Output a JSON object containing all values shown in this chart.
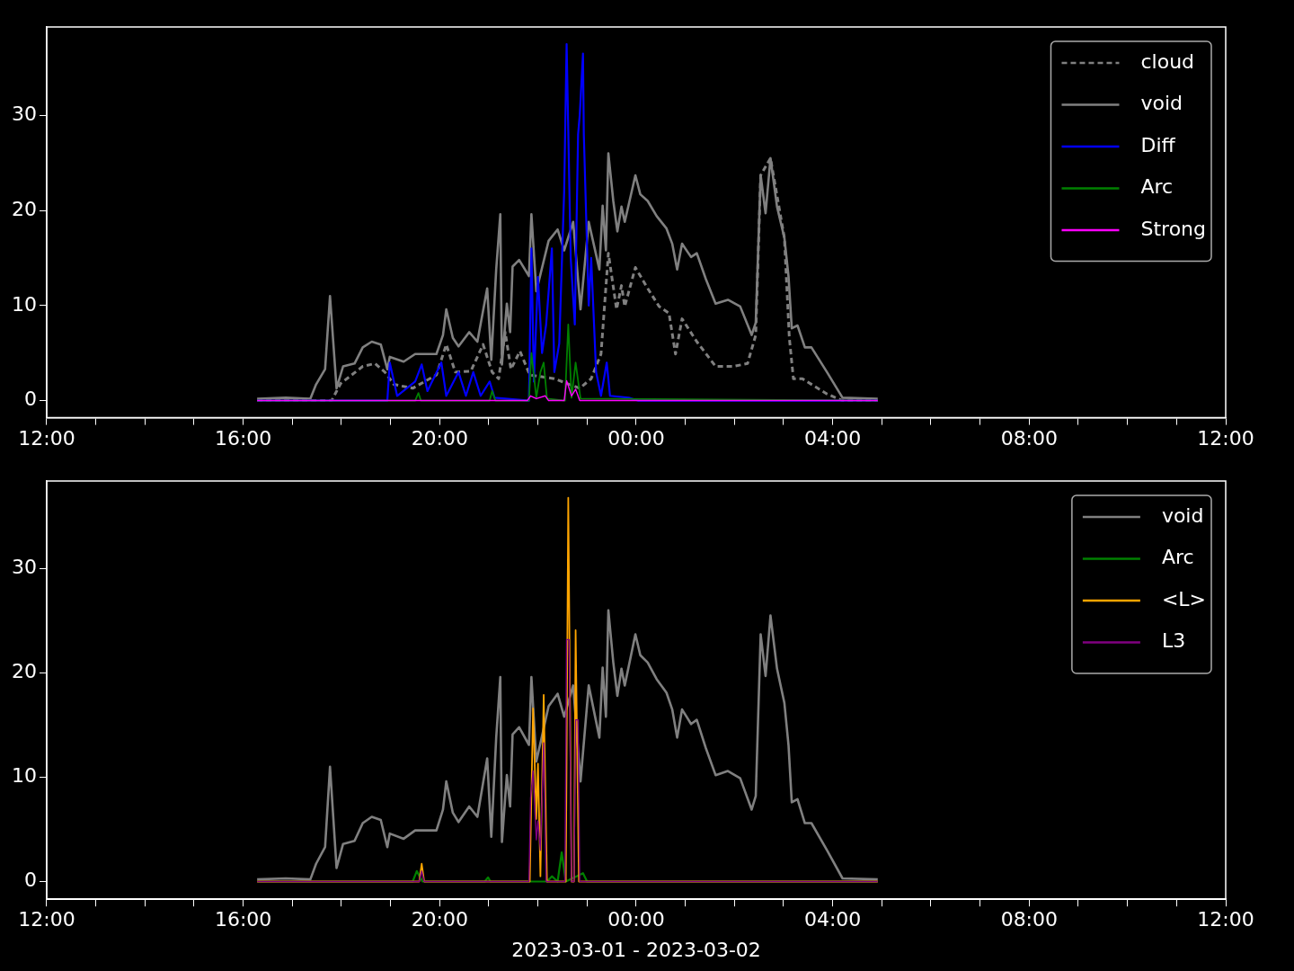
{
  "chart_data": [
    {
      "type": "line",
      "legend": "top right",
      "grid": false,
      "marker": "none",
      "xlim": [
        "2023-03-01T12:00",
        "2023-03-02T12:00"
      ],
      "ylim": [
        -1.8,
        39.3
      ],
      "yticks": [
        0,
        10,
        20,
        30
      ],
      "xticks": [
        {
          "value": "2023-03-01T12:00",
          "label": "12:00"
        },
        {
          "value": "2023-03-01T13:00",
          "label": null
        },
        {
          "value": "2023-03-01T14:00",
          "label": null
        },
        {
          "value": "2023-03-01T15:00",
          "label": null
        },
        {
          "value": "2023-03-01T16:00",
          "label": "16:00"
        },
        {
          "value": "2023-03-01T17:00",
          "label": null
        },
        {
          "value": "2023-03-01T18:00",
          "label": null
        },
        {
          "value": "2023-03-01T19:00",
          "label": null
        },
        {
          "value": "2023-03-01T20:00",
          "label": "20:00"
        },
        {
          "value": "2023-03-01T21:00",
          "label": null
        },
        {
          "value": "2023-03-01T22:00",
          "label": null
        },
        {
          "value": "2023-03-01T23:00",
          "label": null
        },
        {
          "value": "2023-03-02T00:00",
          "label": "00:00"
        },
        {
          "value": "2023-03-02T01:00",
          "label": null
        },
        {
          "value": "2023-03-02T02:00",
          "label": null
        },
        {
          "value": "2023-03-02T03:00",
          "label": null
        },
        {
          "value": "2023-03-02T04:00",
          "label": "04:00"
        },
        {
          "value": "2023-03-02T05:00",
          "label": null
        },
        {
          "value": "2023-03-02T06:00",
          "label": null
        },
        {
          "value": "2023-03-02T07:00",
          "label": null
        },
        {
          "value": "2023-03-02T08:00",
          "label": "08:00"
        },
        {
          "value": "2023-03-02T09:00",
          "label": null
        },
        {
          "value": "2023-03-02T10:00",
          "label": null
        },
        {
          "value": "2023-03-02T11:00",
          "label": null
        },
        {
          "value": "2023-03-02T12:00",
          "label": "12:00"
        }
      ],
      "series": [
        {
          "name": "cloud",
          "color": "#808080",
          "line_style": "dashed",
          "x": [
            "2023-03-01T16:17",
            "2023-03-01T17:48",
            "2023-03-01T17:59",
            "2023-03-01T18:26",
            "2023-03-01T18:41",
            "2023-03-01T18:53",
            "2023-03-01T19:04",
            "2023-03-01T19:27",
            "2023-03-01T19:56",
            "2023-03-01T20:08",
            "2023-03-01T20:19",
            "2023-03-01T20:38",
            "2023-03-01T20:53",
            "2023-03-01T21:04",
            "2023-03-01T21:12",
            "2023-03-01T21:20",
            "2023-03-01T21:27",
            "2023-03-01T21:38",
            "2023-03-01T21:50",
            "2023-03-01T22:20",
            "2023-03-01T22:51",
            "2023-03-01T23:05",
            "2023-03-01T23:17",
            "2023-03-01T23:26",
            "2023-03-01T23:36",
            "2023-03-01T23:42",
            "2023-03-01T23:46",
            "2023-03-01T23:59",
            "2023-03-02T00:14",
            "2023-03-02T00:28",
            "2023-03-02T00:40",
            "2023-03-02T00:48",
            "2023-03-02T00:56",
            "2023-03-02T01:14",
            "2023-03-02T01:37",
            "2023-03-02T01:59",
            "2023-03-02T02:16",
            "2023-03-02T02:26",
            "2023-03-02T02:32",
            "2023-03-02T02:44",
            "2023-03-02T03:01",
            "2023-03-02T03:07",
            "2023-03-02T03:12",
            "2023-03-02T03:23",
            "2023-03-02T03:53",
            "2023-03-02T04:12",
            "2023-03-02T04:55"
          ],
          "values": [
            0,
            0,
            1.8,
            3.6,
            3.9,
            3,
            1.7,
            1.3,
            2.7,
            5.9,
            3,
            3.1,
            5.9,
            3,
            2.3,
            7.2,
            3.3,
            5.2,
            2.7,
            2.3,
            1.3,
            2.3,
            4.9,
            15.5,
            9.6,
            12.1,
            9.9,
            14,
            11.8,
            9.9,
            9.2,
            4.9,
            8.6,
            6.2,
            3.6,
            3.6,
            3.9,
            6.9,
            23.7,
            25.5,
            17.1,
            6.6,
            2.3,
            2.3,
            0.7,
            0,
            0
          ]
        },
        {
          "name": "void",
          "color": "#808080",
          "x": [
            "2023-03-01T16:17",
            "2023-03-01T16:52",
            "2023-03-01T17:22",
            "2023-03-01T17:29",
            "2023-03-01T17:40",
            "2023-03-01T17:46",
            "2023-03-01T17:54",
            "2023-03-01T18:02",
            "2023-03-01T18:16",
            "2023-03-01T18:26",
            "2023-03-01T18:37",
            "2023-03-01T18:48",
            "2023-03-01T18:56",
            "2023-03-01T18:59",
            "2023-03-01T19:16",
            "2023-03-01T19:30",
            "2023-03-01T19:56",
            "2023-03-01T20:04",
            "2023-03-01T20:08",
            "2023-03-01T20:16",
            "2023-03-01T20:23",
            "2023-03-01T20:36",
            "2023-03-01T20:46",
            "2023-03-01T20:58",
            "2023-03-01T21:03",
            "2023-03-01T21:09",
            "2023-03-01T21:14",
            "2023-03-01T21:16",
            "2023-03-01T21:22",
            "2023-03-01T21:26",
            "2023-03-01T21:29",
            "2023-03-01T21:37",
            "2023-03-01T21:49",
            "2023-03-01T21:52",
            "2023-03-01T21:58",
            "2023-03-01T22:13",
            "2023-03-01T22:24",
            "2023-03-01T22:32",
            "2023-03-01T22:43",
            "2023-03-01T22:52",
            "2023-03-01T23:02",
            "2023-03-01T23:15",
            "2023-03-01T23:19",
            "2023-03-01T23:23",
            "2023-03-01T23:26",
            "2023-03-01T23:32",
            "2023-03-01T23:37",
            "2023-03-01T23:42",
            "2023-03-01T23:46",
            "2023-03-01T23:59",
            "2023-03-02T00:05",
            "2023-03-02T00:14",
            "2023-03-02T00:25",
            "2023-03-02T00:37",
            "2023-03-02T00:44",
            "2023-03-02T00:50",
            "2023-03-02T00:56",
            "2023-03-02T01:07",
            "2023-03-02T01:14",
            "2023-03-02T01:25",
            "2023-03-02T01:37",
            "2023-03-02T01:52",
            "2023-03-02T02:07",
            "2023-03-02T02:21",
            "2023-03-02T02:26",
            "2023-03-02T02:32",
            "2023-03-02T02:38",
            "2023-03-02T02:44",
            "2023-03-02T02:52",
            "2023-03-02T03:01",
            "2023-03-02T03:06",
            "2023-03-02T03:10",
            "2023-03-02T03:17",
            "2023-03-02T03:26",
            "2023-03-02T03:34",
            "2023-03-02T03:53",
            "2023-03-02T04:12",
            "2023-03-02T04:55"
          ],
          "values": [
            0.2,
            0.3,
            0.2,
            1.7,
            3.3,
            11,
            1.3,
            3.6,
            3.9,
            5.6,
            6.2,
            5.9,
            3.3,
            4.6,
            4.1,
            4.9,
            4.9,
            6.9,
            9.6,
            6.6,
            5.7,
            7.2,
            6.2,
            11.8,
            4.3,
            13.8,
            19.6,
            3.8,
            10.2,
            7.2,
            14.1,
            14.8,
            13.1,
            19.6,
            11.5,
            16.8,
            18,
            15.8,
            18.8,
            9.6,
            18.8,
            13.8,
            20.5,
            15.8,
            26,
            21,
            17.8,
            20.4,
            18.8,
            23.7,
            21.7,
            21,
            19.4,
            18.1,
            16.5,
            13.8,
            16.5,
            15.1,
            15.5,
            12.8,
            10.2,
            10.6,
            9.9,
            6.9,
            8.2,
            23.7,
            19.7,
            25.5,
            20.4,
            17.1,
            13.1,
            7.6,
            7.9,
            5.6,
            5.6,
            3,
            0.3,
            0.2
          ]
        },
        {
          "name": "Diff",
          "color": "#0000ff",
          "x": [
            "2023-03-01T16:17",
            "2023-03-01T18:56",
            "2023-03-01T18:59",
            "2023-03-01T19:08",
            "2023-03-01T19:30",
            "2023-03-01T19:38",
            "2023-03-01T19:45",
            "2023-03-01T20:02",
            "2023-03-01T20:08",
            "2023-03-01T20:23",
            "2023-03-01T20:32",
            "2023-03-01T20:41",
            "2023-03-01T20:50",
            "2023-03-01T21:01",
            "2023-03-01T21:07",
            "2023-03-01T21:49",
            "2023-03-01T21:52",
            "2023-03-01T21:55",
            "2023-03-01T22:00",
            "2023-03-01T22:05",
            "2023-03-01T22:10",
            "2023-03-01T22:17",
            "2023-03-01T22:20",
            "2023-03-01T22:26",
            "2023-03-01T22:32",
            "2023-03-01T22:35",
            "2023-03-01T22:40",
            "2023-03-01T22:45",
            "2023-03-01T22:49",
            "2023-03-01T22:51",
            "2023-03-01T22:55",
            "2023-03-01T22:56",
            "2023-03-01T23:02",
            "2023-03-01T23:05",
            "2023-03-01T23:11",
            "2023-03-01T23:17",
            "2023-03-01T23:24",
            "2023-03-01T23:28",
            "2023-03-01T23:51",
            "2023-03-02T00:02",
            "2023-03-02T04:55"
          ],
          "values": [
            0,
            0,
            4,
            0.5,
            2,
            3.8,
            1,
            4,
            0.5,
            3,
            0.5,
            3,
            0.5,
            2,
            0.3,
            0,
            16,
            2,
            13,
            5,
            8,
            16,
            3,
            6,
            22,
            37.5,
            15,
            8,
            28,
            30,
            36.5,
            28,
            10,
            15,
            3,
            0.5,
            4,
            0.5,
            0.3,
            0,
            0
          ]
        },
        {
          "name": "Arc",
          "color": "#008000",
          "x": [
            "2023-03-01T16:17",
            "2023-03-01T19:30",
            "2023-03-01T19:34",
            "2023-03-01T19:37",
            "2023-03-01T21:01",
            "2023-03-01T21:04",
            "2023-03-01T21:08",
            "2023-03-01T21:49",
            "2023-03-01T21:52",
            "2023-03-01T21:58",
            "2023-03-01T22:03",
            "2023-03-01T22:07",
            "2023-03-01T22:11",
            "2023-03-01T22:33",
            "2023-03-01T22:37",
            "2023-03-01T22:41",
            "2023-03-01T22:46",
            "2023-03-01T22:52",
            "2023-03-02T04:55"
          ],
          "values": [
            0,
            0,
            0.8,
            0,
            0,
            1,
            0,
            0,
            5,
            0.3,
            3,
            4,
            0.2,
            0,
            8,
            0.3,
            4,
            0.2,
            0
          ]
        },
        {
          "name": "Strong",
          "color": "#ff00ff",
          "x": [
            "2023-03-01T16:17",
            "2023-03-01T21:47",
            "2023-03-01T21:51",
            "2023-03-01T21:58",
            "2023-03-01T22:09",
            "2023-03-01T22:13",
            "2023-03-01T22:32",
            "2023-03-01T22:35",
            "2023-03-01T22:41",
            "2023-03-01T22:46",
            "2023-03-01T22:51",
            "2023-03-02T04:55"
          ],
          "values": [
            0,
            0,
            0.5,
            0.2,
            0.5,
            0,
            0,
            2.1,
            0.5,
            1.2,
            0,
            0
          ]
        }
      ]
    },
    {
      "type": "line",
      "legend": "top right",
      "grid": false,
      "marker": "none",
      "xlabel": "2023-03-01 - 2023-03-02",
      "xlim": [
        "2023-03-01T12:00",
        "2023-03-02T12:00"
      ],
      "ylim": [
        -1.7,
        38.4
      ],
      "yticks": [
        0,
        10,
        20,
        30
      ],
      "xticks": [
        {
          "value": "2023-03-01T12:00",
          "label": "12:00"
        },
        {
          "value": "2023-03-01T13:00",
          "label": null
        },
        {
          "value": "2023-03-01T14:00",
          "label": null
        },
        {
          "value": "2023-03-01T15:00",
          "label": null
        },
        {
          "value": "2023-03-01T16:00",
          "label": "16:00"
        },
        {
          "value": "2023-03-01T17:00",
          "label": null
        },
        {
          "value": "2023-03-01T18:00",
          "label": null
        },
        {
          "value": "2023-03-01T19:00",
          "label": null
        },
        {
          "value": "2023-03-01T20:00",
          "label": "20:00"
        },
        {
          "value": "2023-03-01T21:00",
          "label": null
        },
        {
          "value": "2023-03-01T22:00",
          "label": null
        },
        {
          "value": "2023-03-01T23:00",
          "label": null
        },
        {
          "value": "2023-03-02T00:00",
          "label": "00:00"
        },
        {
          "value": "2023-03-02T01:00",
          "label": null
        },
        {
          "value": "2023-03-02T02:00",
          "label": null
        },
        {
          "value": "2023-03-02T03:00",
          "label": null
        },
        {
          "value": "2023-03-02T04:00",
          "label": "04:00"
        },
        {
          "value": "2023-03-02T05:00",
          "label": null
        },
        {
          "value": "2023-03-02T06:00",
          "label": null
        },
        {
          "value": "2023-03-02T07:00",
          "label": null
        },
        {
          "value": "2023-03-02T08:00",
          "label": "08:00"
        },
        {
          "value": "2023-03-02T09:00",
          "label": null
        },
        {
          "value": "2023-03-02T10:00",
          "label": null
        },
        {
          "value": "2023-03-02T11:00",
          "label": null
        },
        {
          "value": "2023-03-02T12:00",
          "label": "12:00"
        }
      ],
      "series": [
        {
          "name": "void",
          "color": "#808080",
          "x": [
            "2023-03-01T16:17",
            "2023-03-01T16:52",
            "2023-03-01T17:22",
            "2023-03-01T17:29",
            "2023-03-01T17:40",
            "2023-03-01T17:46",
            "2023-03-01T17:54",
            "2023-03-01T18:02",
            "2023-03-01T18:16",
            "2023-03-01T18:26",
            "2023-03-01T18:37",
            "2023-03-01T18:48",
            "2023-03-01T18:56",
            "2023-03-01T18:59",
            "2023-03-01T19:16",
            "2023-03-01T19:30",
            "2023-03-01T19:56",
            "2023-03-01T20:04",
            "2023-03-01T20:08",
            "2023-03-01T20:16",
            "2023-03-01T20:23",
            "2023-03-01T20:36",
            "2023-03-01T20:46",
            "2023-03-01T20:58",
            "2023-03-01T21:03",
            "2023-03-01T21:09",
            "2023-03-01T21:14",
            "2023-03-01T21:16",
            "2023-03-01T21:22",
            "2023-03-01T21:26",
            "2023-03-01T21:29",
            "2023-03-01T21:37",
            "2023-03-01T21:49",
            "2023-03-01T21:52",
            "2023-03-01T21:58",
            "2023-03-01T22:13",
            "2023-03-01T22:24",
            "2023-03-01T22:32",
            "2023-03-01T22:43",
            "2023-03-01T22:52",
            "2023-03-01T23:02",
            "2023-03-01T23:15",
            "2023-03-01T23:19",
            "2023-03-01T23:23",
            "2023-03-01T23:26",
            "2023-03-01T23:32",
            "2023-03-01T23:37",
            "2023-03-01T23:42",
            "2023-03-01T23:46",
            "2023-03-01T23:59",
            "2023-03-02T00:05",
            "2023-03-02T00:14",
            "2023-03-02T00:25",
            "2023-03-02T00:37",
            "2023-03-02T00:44",
            "2023-03-02T00:50",
            "2023-03-02T00:56",
            "2023-03-02T01:07",
            "2023-03-02T01:14",
            "2023-03-02T01:25",
            "2023-03-02T01:37",
            "2023-03-02T01:52",
            "2023-03-02T02:07",
            "2023-03-02T02:21",
            "2023-03-02T02:26",
            "2023-03-02T02:32",
            "2023-03-02T02:38",
            "2023-03-02T02:44",
            "2023-03-02T02:52",
            "2023-03-02T03:01",
            "2023-03-02T03:06",
            "2023-03-02T03:10",
            "2023-03-02T03:17",
            "2023-03-02T03:26",
            "2023-03-02T03:34",
            "2023-03-02T03:53",
            "2023-03-02T04:12",
            "2023-03-02T04:55"
          ],
          "values": [
            0.2,
            0.3,
            0.2,
            1.7,
            3.3,
            11,
            1.3,
            3.6,
            3.9,
            5.6,
            6.2,
            5.9,
            3.3,
            4.6,
            4.1,
            4.9,
            4.9,
            6.9,
            9.6,
            6.6,
            5.7,
            7.2,
            6.2,
            11.8,
            4.3,
            13.8,
            19.6,
            3.8,
            10.2,
            7.2,
            14.1,
            14.8,
            13.1,
            19.6,
            11.5,
            16.8,
            18,
            15.8,
            18.8,
            9.6,
            18.8,
            13.8,
            20.5,
            15.8,
            26,
            21,
            17.8,
            20.4,
            18.8,
            23.7,
            21.7,
            21,
            19.4,
            18.1,
            16.5,
            13.8,
            16.5,
            15.1,
            15.5,
            12.8,
            10.2,
            10.6,
            9.9,
            6.9,
            8.2,
            23.7,
            19.7,
            25.5,
            20.4,
            17.1,
            13.1,
            7.6,
            7.9,
            5.6,
            5.6,
            3,
            0.3,
            0.2
          ]
        },
        {
          "name": "Arc",
          "color": "#008000",
          "x": [
            "2023-03-01T16:17",
            "2023-03-01T19:27",
            "2023-03-01T19:32",
            "2023-03-01T19:39",
            "2023-03-01T20:55",
            "2023-03-01T20:59",
            "2023-03-01T21:02",
            "2023-03-01T22:11",
            "2023-03-01T22:17",
            "2023-03-01T22:24",
            "2023-03-01T22:29",
            "2023-03-01T22:34",
            "2023-03-01T22:55",
            "2023-03-01T23:00",
            "2023-03-02T04:55"
          ],
          "values": [
            0,
            0,
            1,
            0,
            0,
            0.4,
            0,
            0,
            0.5,
            0,
            2.8,
            0,
            0.8,
            0,
            0
          ]
        },
        {
          "name": "<L>",
          "color": "#ffa500",
          "x": [
            "2023-03-01T16:17",
            "2023-03-01T19:35",
            "2023-03-01T19:38",
            "2023-03-01T19:41",
            "2023-03-01T21:50",
            "2023-03-01T21:54",
            "2023-03-01T21:58",
            "2023-03-01T22:00",
            "2023-03-01T22:03",
            "2023-03-01T22:07",
            "2023-03-01T22:11",
            "2023-03-01T22:34",
            "2023-03-01T22:37",
            "2023-03-01T22:41",
            "2023-03-01T22:44",
            "2023-03-01T22:46",
            "2023-03-01T22:50",
            "2023-03-02T04:55"
          ],
          "values": [
            0,
            0,
            1.7,
            0,
            0,
            16.6,
            6,
            11.3,
            0.5,
            17.9,
            0,
            0,
            36.8,
            0,
            0,
            24.1,
            0,
            0
          ]
        },
        {
          "name": "L3",
          "color": "#800080",
          "x": [
            "2023-03-01T16:17",
            "2023-03-01T19:35",
            "2023-03-01T19:38",
            "2023-03-01T19:41",
            "2023-03-01T21:49",
            "2023-03-01T21:51",
            "2023-03-01T21:54",
            "2023-03-01T21:58",
            "2023-03-01T22:00",
            "2023-03-01T22:03",
            "2023-03-01T22:07",
            "2023-03-01T22:10",
            "2023-03-01T22:33",
            "2023-03-01T22:35",
            "2023-03-01T22:38",
            "2023-03-01T22:41",
            "2023-03-01T22:44",
            "2023-03-01T22:46",
            "2023-03-01T22:49",
            "2023-03-01T22:51",
            "2023-03-02T04:55"
          ],
          "values": [
            0,
            0,
            1,
            0,
            0,
            8,
            10.6,
            4,
            5.8,
            3,
            13.3,
            0,
            0,
            23.2,
            23.2,
            0,
            0,
            15.5,
            15.5,
            0,
            0
          ]
        }
      ]
    }
  ]
}
